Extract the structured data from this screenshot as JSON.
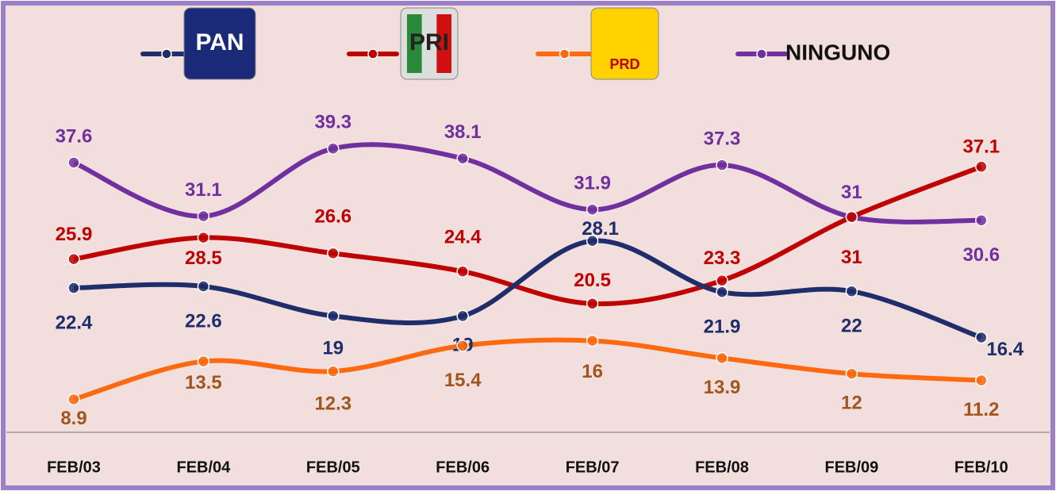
{
  "chart_data": {
    "type": "line",
    "categories": [
      "FEB/03",
      "FEB/04",
      "FEB/05",
      "FEB/06",
      "FEB/07",
      "FEB/08",
      "FEB/09",
      "FEB/10"
    ],
    "series": [
      {
        "name": "PAN",
        "color": "#1f2d6b",
        "values": [
          22.4,
          22.6,
          19.0,
          19.0,
          28.1,
          21.9,
          22.0,
          16.4
        ]
      },
      {
        "name": "PRI",
        "color": "#c00000",
        "values": [
          25.9,
          28.5,
          26.6,
          24.4,
          20.5,
          23.3,
          31.0,
          37.1
        ]
      },
      {
        "name": "PRD",
        "color": "#ff6a10",
        "values": [
          8.9,
          13.5,
          12.3,
          15.4,
          16.0,
          13.9,
          12.0,
          11.2
        ]
      },
      {
        "name": "NINGUNO",
        "color": "#7030a0",
        "values": [
          37.6,
          31.1,
          39.3,
          38.1,
          31.9,
          37.3,
          31.0,
          30.6
        ]
      }
    ],
    "ylim": [
      5,
      45
    ]
  }
}
